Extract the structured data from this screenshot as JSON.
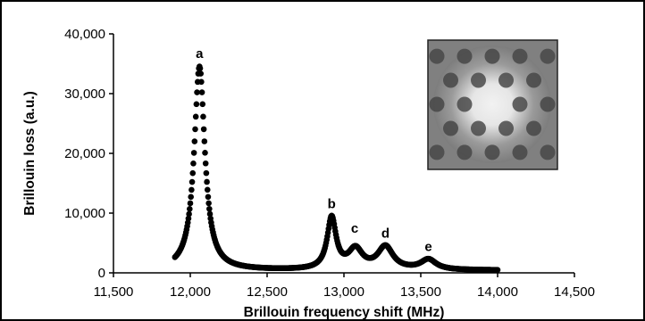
{
  "chart_data": {
    "type": "scatter",
    "xlabel": "Brillouin frequency shift (MHz)",
    "ylabel": "Brillouin loss (a.u.)",
    "xlim": [
      11500,
      14500
    ],
    "ylim": [
      0,
      40000
    ],
    "x_ticks": [
      "11,500",
      "12,000",
      "12,500",
      "13,000",
      "13,500",
      "14,000",
      "14,500"
    ],
    "y_ticks": [
      "0",
      "10,000",
      "20,000",
      "30,000",
      "40,000"
    ],
    "grid": false,
    "legend": "none",
    "marker_color": "#000000",
    "peaks": [
      {
        "label": "a",
        "x": 12060,
        "y": 34500
      },
      {
        "label": "b",
        "x": 12920,
        "y": 9300
      },
      {
        "label": "c",
        "x": 13070,
        "y": 5200
      },
      {
        "label": "d",
        "x": 13270,
        "y": 4400
      },
      {
        "label": "e",
        "x": 13550,
        "y": 2200
      }
    ],
    "inset": {
      "type": "image",
      "subject": "photonic-crystal-fiber-cross-section"
    }
  }
}
